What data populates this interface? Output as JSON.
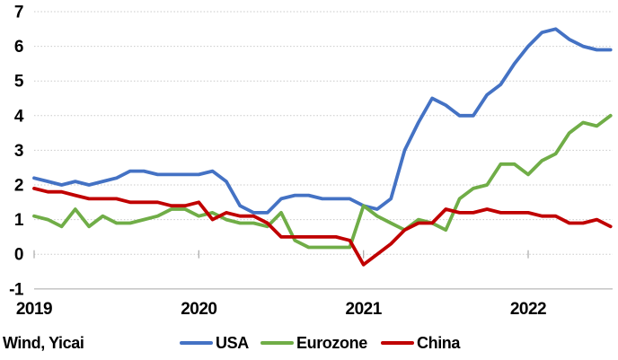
{
  "source_label": "Wind, Yicai",
  "colors": {
    "usa_line": "#4472C4",
    "eurozone_line": "#70AD47",
    "china_line": "#C00000",
    "gridline_dotted": "#C9C9C9",
    "axis_bottom_line": "#BFBFBF",
    "year_tick": "#B0B0B0",
    "label_text": "#000000",
    "background": "#FFFFFF"
  },
  "chart_data": {
    "type": "line",
    "title": "",
    "xlabel": "",
    "ylabel": "",
    "ylim": [
      -1,
      7
    ],
    "y_ticks": [
      7,
      6,
      5,
      4,
      3,
      2,
      1,
      0,
      -1
    ],
    "grid": "horizontal-dotted",
    "legend_position": "bottom-center",
    "x_frequency": "monthly",
    "x_start": "2019-01",
    "x_end": "2022-07",
    "x_tick_labels": [
      "2019",
      "2020",
      "2021",
      "2022"
    ],
    "x_ticks_at_month_index": [
      0,
      12,
      24,
      36
    ],
    "series": [
      {
        "name": "USA",
        "color": "#4472C4",
        "values": [
          2.2,
          2.1,
          2.0,
          2.1,
          2.0,
          2.1,
          2.2,
          2.4,
          2.4,
          2.3,
          2.3,
          2.3,
          2.3,
          2.4,
          2.1,
          1.4,
          1.2,
          1.2,
          1.6,
          1.7,
          1.7,
          1.6,
          1.6,
          1.6,
          1.4,
          1.3,
          1.6,
          3.0,
          3.8,
          4.5,
          4.3,
          4.0,
          4.0,
          4.6,
          4.9,
          5.5,
          6.0,
          6.4,
          6.5,
          6.2,
          6.0,
          5.9,
          5.9
        ]
      },
      {
        "name": "Eurozone",
        "color": "#70AD47",
        "values": [
          1.1,
          1.0,
          0.8,
          1.3,
          0.8,
          1.1,
          0.9,
          0.9,
          1.0,
          1.1,
          1.3,
          1.3,
          1.1,
          1.2,
          1.0,
          0.9,
          0.9,
          0.8,
          1.2,
          0.4,
          0.2,
          0.2,
          0.2,
          0.2,
          1.4,
          1.1,
          0.9,
          0.7,
          1.0,
          0.9,
          0.7,
          1.6,
          1.9,
          2.0,
          2.6,
          2.6,
          2.3,
          2.7,
          2.9,
          3.5,
          3.8,
          3.7,
          4.0
        ]
      },
      {
        "name": "China",
        "color": "#C00000",
        "values": [
          1.9,
          1.8,
          1.8,
          1.7,
          1.6,
          1.6,
          1.6,
          1.5,
          1.5,
          1.5,
          1.4,
          1.4,
          1.5,
          1.0,
          1.2,
          1.1,
          1.1,
          0.9,
          0.5,
          0.5,
          0.5,
          0.5,
          0.5,
          0.4,
          -0.3,
          0.0,
          0.3,
          0.7,
          0.9,
          0.9,
          1.3,
          1.2,
          1.2,
          1.3,
          1.2,
          1.2,
          1.2,
          1.1,
          1.1,
          0.9,
          0.9,
          1.0,
          0.8
        ]
      }
    ]
  }
}
